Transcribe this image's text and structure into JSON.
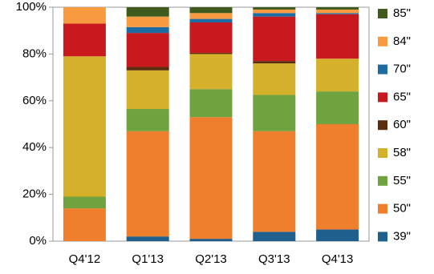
{
  "chart_data": {
    "type": "stacked_bar",
    "categories": [
      "Q4'12",
      "Q1'13",
      "Q2'13",
      "Q3'13",
      "Q4'13"
    ],
    "series": [
      {
        "name": "39\"",
        "color": "#1f5f8e",
        "values": [
          0,
          2,
          1,
          4,
          5
        ]
      },
      {
        "name": "50\"",
        "color": "#f07f2d",
        "values": [
          14,
          45,
          52,
          43,
          45
        ]
      },
      {
        "name": "55\"",
        "color": "#6ea33f",
        "values": [
          5,
          9.5,
          12,
          15.5,
          14
        ]
      },
      {
        "name": "58\"",
        "color": "#d5b02a",
        "values": [
          60,
          16.5,
          15,
          13.5,
          14
        ]
      },
      {
        "name": "60\"",
        "color": "#5b2c0d",
        "values": [
          0,
          1.5,
          0.5,
          1,
          0
        ]
      },
      {
        "name": "65\"",
        "color": "#c7191e",
        "values": [
          14,
          14.5,
          13,
          19,
          19
        ]
      },
      {
        "name": "70\"",
        "color": "#1c6ba3",
        "values": [
          0,
          2.5,
          1.5,
          1.5,
          0.5
        ]
      },
      {
        "name": "84\"",
        "color": "#f89a3f",
        "values": [
          7,
          4.5,
          2.5,
          1.5,
          1.5
        ]
      },
      {
        "name": "85\"",
        "color": "#3e5a1f",
        "values": [
          0,
          4,
          2.5,
          1,
          1
        ]
      }
    ],
    "ylim": [
      0,
      100
    ],
    "yticks": [
      {
        "value": 0,
        "label": "0%"
      },
      {
        "value": 20,
        "label": "20%"
      },
      {
        "value": 40,
        "label": "40%"
      },
      {
        "value": 60,
        "label": "60%"
      },
      {
        "value": 80,
        "label": "80%"
      },
      {
        "value": 100,
        "label": "100%"
      }
    ],
    "legend": "right"
  }
}
